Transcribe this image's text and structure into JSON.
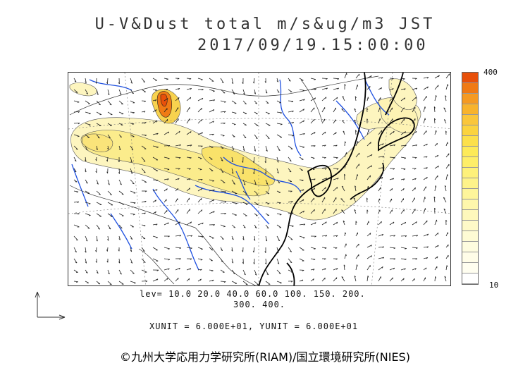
{
  "title": {
    "line1": "U-V&Dust total m/s&ug/m3 JST",
    "line2": "2017/09/19.15:00:00"
  },
  "colorbar": {
    "max_label": "400",
    "min_label": "10",
    "colors": [
      "#e8500a",
      "#f07a14",
      "#f59a22",
      "#f8b32c",
      "#fac63a",
      "#fbd33e",
      "#fce04a",
      "#fdea58",
      "#feee68",
      "#fef17a",
      "#fef38a",
      "#fef59b",
      "#fef7ac",
      "#fef8bc",
      "#fef9c8",
      "#fefbd4",
      "#fefcdf",
      "#fffde8",
      "#fffef0",
      "#ffffff"
    ]
  },
  "levels": {
    "line1": "lev= 10.0 20.0 40.0 60.0 100. 150. 200.",
    "line2": "300. 400."
  },
  "units": "XUNIT = 6.000E+01, YUNIT = 6.000E+01",
  "credit": "©九州大学応用力学研究所(RIAM)/国立環境研究所(NIES)"
}
